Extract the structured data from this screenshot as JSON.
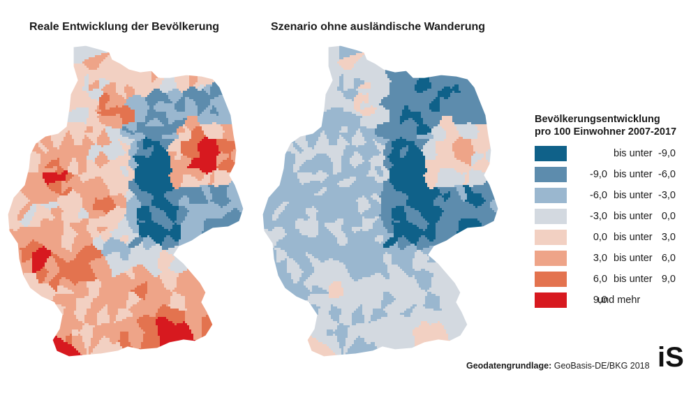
{
  "maps": {
    "left_title": "Reale Entwicklung der Bevölkerung",
    "right_title": "Szenario ohne ausländische Wanderung"
  },
  "legend": {
    "title_line1": "Bevölkerungsentwicklung",
    "title_line2": "pro 100 Einwohner 2007-2017",
    "classes": [
      {
        "from": "",
        "word": "bis unter",
        "to": "-9,0",
        "color": "#0f6189"
      },
      {
        "from": "-9,0",
        "word": "bis unter",
        "to": "-6,0",
        "color": "#5d8cad"
      },
      {
        "from": "-6,0",
        "word": "bis unter",
        "to": "-3,0",
        "color": "#9ab7cf"
      },
      {
        "from": "-3,0",
        "word": "bis unter",
        "to": "0,0",
        "color": "#d3d9e0"
      },
      {
        "from": "0,0",
        "word": "bis unter",
        "to": "3,0",
        "color": "#f2d0c2"
      },
      {
        "from": "3,0",
        "word": "bis unter",
        "to": "6,0",
        "color": "#eea488"
      },
      {
        "from": "6,0",
        "word": "bis unter",
        "to": "9,0",
        "color": "#e3734f"
      },
      {
        "from": "9,0",
        "word": "und mehr",
        "to": "",
        "color": "#d7191f"
      }
    ]
  },
  "source": {
    "label": "Geodatengrundlage:",
    "text": "GeoBasis-DE/BKG 2018"
  },
  "logo": {
    "text": "iS"
  }
}
